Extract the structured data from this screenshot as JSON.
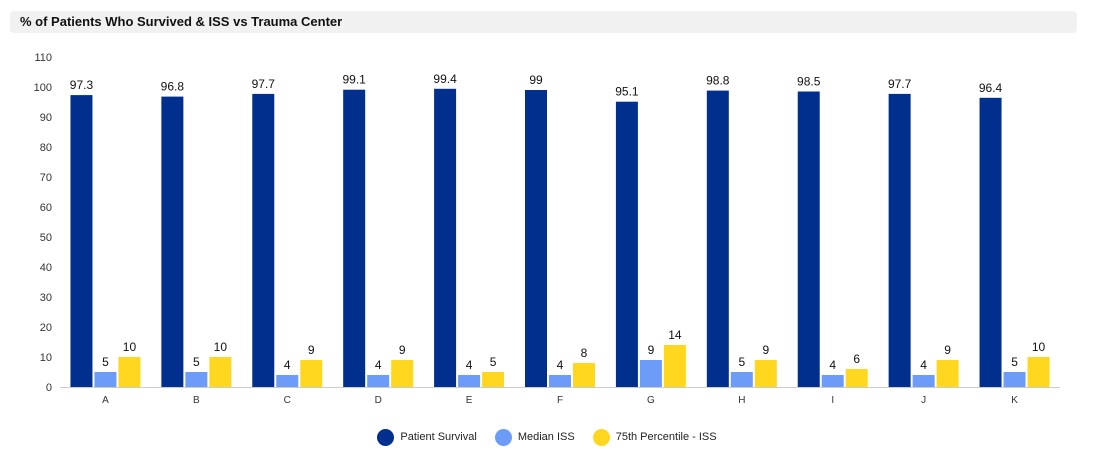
{
  "chart_data": {
    "type": "bar",
    "title": "% of Patients Who Survived & ISS vs Trauma Center",
    "xlabel": "",
    "ylabel": "",
    "ylim": [
      0,
      110
    ],
    "yticks": [
      0,
      10,
      20,
      30,
      40,
      50,
      60,
      70,
      80,
      90,
      100,
      110
    ],
    "grid": false,
    "legend_position": "bottom",
    "categories": [
      "A",
      "B",
      "C",
      "D",
      "E",
      "F",
      "G",
      "H",
      "I",
      "J",
      "K"
    ],
    "series": [
      {
        "name": "Patient Survival",
        "color": "#002f8e",
        "values": [
          97.3,
          96.8,
          97.7,
          99.1,
          99.4,
          99,
          95.1,
          98.8,
          98.5,
          97.7,
          96.4
        ]
      },
      {
        "name": "Median ISS",
        "color": "#6c9cf8",
        "values": [
          5,
          5,
          4,
          4,
          4,
          4,
          9,
          5,
          4,
          4,
          5
        ]
      },
      {
        "name": "75th Percentile - ISS",
        "color": "#fed71e",
        "values": [
          10,
          10,
          9,
          9,
          5,
          8,
          14,
          9,
          6,
          9,
          10
        ]
      }
    ]
  }
}
